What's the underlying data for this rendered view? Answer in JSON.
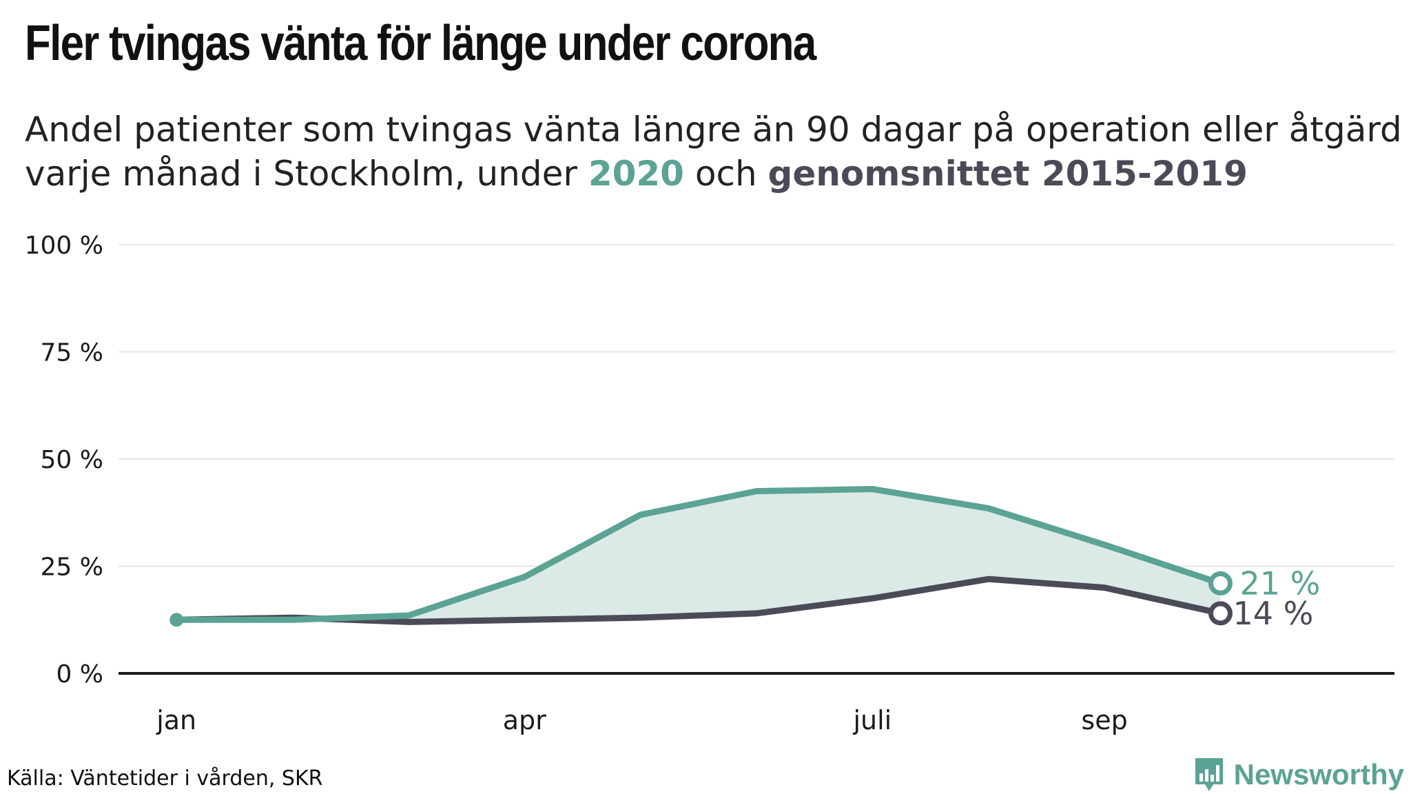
{
  "title": "Fler tvingas vänta för länge under corona",
  "subtitle": {
    "text_before": "Andel patienter som tvingas vänta längre än 90 dagar på operation eller åtgärd varje månad i Stockholm, under ",
    "highlight_2020": "2020",
    "text_middle": " och ",
    "highlight_avg": "genomsnittet 2015-2019"
  },
  "source": "Källa: Väntetider i vården, SKR",
  "logo": {
    "text": "Newsworthy",
    "icon": "newsworthy-chart-icon"
  },
  "colors": {
    "series_2020": "#5ba394",
    "series_avg": "#4b4b58",
    "area_fill": "#dbeae6",
    "axis": "#1a1a1a",
    "grid": "#e6e6e6"
  },
  "chart_data": {
    "type": "line",
    "x": [
      1,
      2,
      3,
      4,
      5,
      6,
      7,
      8,
      9,
      10
    ],
    "x_tick_values": [
      1,
      4,
      7,
      9
    ],
    "x_tick_labels": [
      "jan",
      "apr",
      "juli",
      "sep"
    ],
    "xlim": [
      0.5,
      11.5
    ],
    "ylim": [
      0,
      100
    ],
    "y_ticks": [
      0,
      25,
      50,
      75,
      100
    ],
    "y_tick_labels": [
      "0 %",
      "25 %",
      "50 %",
      "75 %",
      "100 %"
    ],
    "grid": true,
    "area_between_series": true,
    "series": [
      {
        "name": "2020",
        "values": [
          12.5,
          12.5,
          13.5,
          22.5,
          37,
          42.5,
          43,
          38.5,
          30,
          21
        ],
        "end_label": "21 %"
      },
      {
        "name": "genomsnittet 2015-2019",
        "values": [
          12.5,
          13,
          12,
          12.5,
          13,
          14,
          17.5,
          22,
          20,
          14
        ],
        "end_label": "14 %"
      }
    ]
  }
}
